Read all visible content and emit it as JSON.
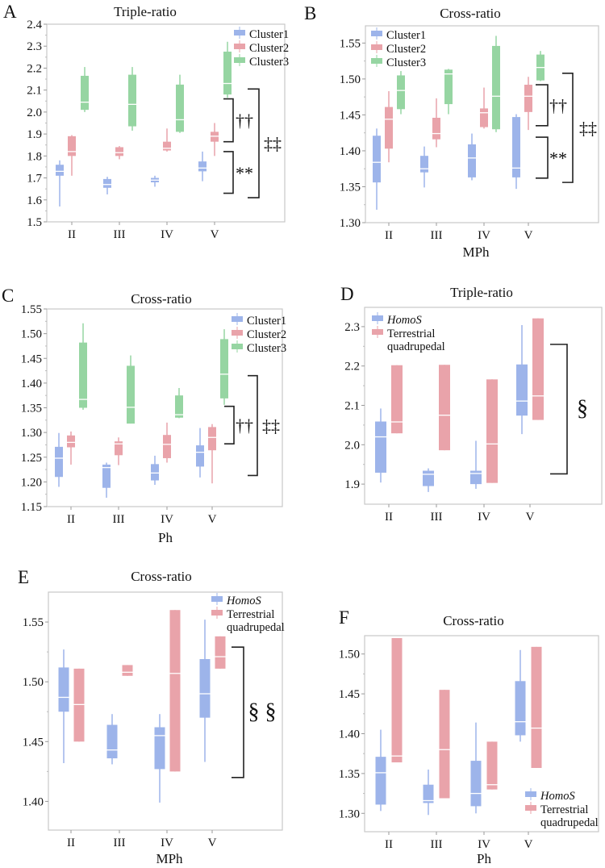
{
  "colors": {
    "cluster1": "#9db4ea",
    "cluster2": "#e9a3aa",
    "cluster3": "#96d5a2",
    "homos": "#9db4ea",
    "terrestrial": "#e9a3aa",
    "frame": "#c8c8c8",
    "median": "#ffffff",
    "bracket": "#222222"
  },
  "chart_data": [
    {
      "panel": "A",
      "type": "box",
      "title": "Triple-ratio",
      "xlabel": "",
      "ylabel": "",
      "ylim": [
        1.5,
        2.4
      ],
      "yticks": [
        "1.5",
        "1.6",
        "1.7",
        "1.8",
        "1.9",
        "2.0",
        "2.1",
        "2.2",
        "2.3",
        "2.4"
      ],
      "categories": [
        "II",
        "III",
        "IV",
        "V"
      ],
      "legend_position": "top-right",
      "series": [
        {
          "name": "Cluster1",
          "color_key": "cluster1",
          "label_lines": [
            "Cluster1"
          ],
          "boxes": [
            [
              1.57,
              1.71,
              1.73,
              1.76,
              1.78
            ],
            [
              1.625,
              1.655,
              1.67,
              1.695,
              1.705
            ],
            [
              1.66,
              1.68,
              1.69,
              1.7,
              1.71
            ],
            [
              1.685,
              1.73,
              1.745,
              1.775,
              1.82
            ]
          ]
        },
        {
          "name": "Cluster2",
          "color_key": "cluster2",
          "label_lines": [
            "Cluster2"
          ],
          "boxes": [
            [
              1.71,
              1.8,
              1.82,
              1.89,
              1.895
            ],
            [
              1.785,
              1.8,
              1.815,
              1.84,
              1.845
            ],
            [
              1.82,
              1.825,
              1.835,
              1.865,
              1.925
            ],
            [
              1.8,
              1.865,
              1.89,
              1.91,
              1.95
            ]
          ]
        },
        {
          "name": "Cluster3",
          "color_key": "cluster3",
          "label_lines": [
            "Cluster3"
          ],
          "boxes": [
            [
              2.0,
              2.01,
              2.045,
              2.165,
              2.205
            ],
            [
              1.915,
              1.935,
              2.035,
              2.17,
              2.205
            ],
            [
              1.905,
              1.91,
              1.965,
              2.125,
              2.17
            ],
            [
              2.065,
              2.08,
              2.13,
              2.275,
              2.32
            ]
          ]
        }
      ],
      "annotations": [
        {
          "label": "††",
          "y_range": [
            1.865,
            2.06
          ]
        },
        {
          "label": "**",
          "y_range": [
            1.63,
            1.82
          ]
        },
        {
          "label": "‡‡",
          "y_range": [
            1.61,
            2.105
          ]
        }
      ]
    },
    {
      "panel": "B",
      "type": "box",
      "title": "Cross-ratio",
      "xlabel": "MPh",
      "ylabel": "",
      "ylim": [
        1.3,
        1.574
      ],
      "yticks": [
        "1.30",
        "1.35",
        "1.40",
        "1.45",
        "1.50",
        "1.55"
      ],
      "categories": [
        "II",
        "III",
        "IV",
        "V"
      ],
      "legend_position": "top-left",
      "series": [
        {
          "name": "Cluster1",
          "color_key": "cluster1",
          "label_lines": [
            "Cluster1"
          ],
          "boxes": [
            [
              1.318,
              1.356,
              1.384,
              1.421,
              1.431
            ],
            [
              1.349,
              1.37,
              1.375,
              1.393,
              1.406
            ],
            [
              1.359,
              1.363,
              1.39,
              1.409,
              1.424
            ],
            [
              1.347,
              1.363,
              1.376,
              1.447,
              1.451
            ]
          ]
        },
        {
          "name": "Cluster2",
          "color_key": "cluster2",
          "label_lines": [
            "Cluster2"
          ],
          "boxes": [
            [
              1.384,
              1.403,
              1.444,
              1.461,
              1.483
            ],
            [
              1.405,
              1.416,
              1.424,
              1.446,
              1.473
            ],
            [
              1.431,
              1.433,
              1.453,
              1.459,
              1.488
            ],
            [
              1.429,
              1.454,
              1.476,
              1.492,
              1.503
            ]
          ]
        },
        {
          "name": "Cluster3",
          "color_key": "cluster3",
          "label_lines": [
            "Cluster3"
          ],
          "boxes": [
            [
              1.451,
              1.458,
              1.484,
              1.505,
              1.511
            ],
            [
              1.451,
              1.465,
              1.507,
              1.513,
              1.514
            ],
            [
              1.426,
              1.43,
              1.476,
              1.546,
              1.56
            ],
            [
              1.497,
              1.498,
              1.516,
              1.534,
              1.539
            ]
          ]
        }
      ],
      "annotations": [
        {
          "label": "††",
          "y_range": [
            1.435,
            1.492
          ]
        },
        {
          "label": "**",
          "y_range": [
            1.362,
            1.419
          ]
        },
        {
          "label": "‡‡",
          "y_range": [
            1.356,
            1.508
          ]
        }
      ]
    },
    {
      "panel": "C",
      "type": "box",
      "title": "Cross-ratio",
      "xlabel": "Ph",
      "ylabel": "",
      "ylim": [
        1.15,
        1.55
      ],
      "yticks": [
        "1.15",
        "1.20",
        "1.25",
        "1.30",
        "1.35",
        "1.40",
        "1.45",
        "1.50",
        "1.55"
      ],
      "categories": [
        "II",
        "III",
        "IV",
        "V"
      ],
      "legend_position": "top-right",
      "series": [
        {
          "name": "Cluster1",
          "color_key": "cluster1",
          "label_lines": [
            "Cluster1"
          ],
          "boxes": [
            [
              1.19,
              1.21,
              1.248,
              1.271,
              1.299
            ],
            [
              1.168,
              1.188,
              1.229,
              1.235,
              1.239
            ],
            [
              1.194,
              1.203,
              1.218,
              1.236,
              1.253
            ],
            [
              1.209,
              1.231,
              1.26,
              1.274,
              1.309
            ]
          ]
        },
        {
          "name": "Cluster2",
          "color_key": "cluster2",
          "label_lines": [
            "Cluster2"
          ],
          "boxes": [
            [
              1.235,
              1.27,
              1.28,
              1.294,
              1.302
            ],
            [
              1.234,
              1.254,
              1.277,
              1.282,
              1.29
            ],
            [
              1.239,
              1.248,
              1.276,
              1.295,
              1.32
            ],
            [
              1.197,
              1.264,
              1.29,
              1.311,
              1.317
            ]
          ]
        },
        {
          "name": "Cluster3",
          "color_key": "cluster3",
          "label_lines": [
            "Cluster3"
          ],
          "boxes": [
            [
              1.346,
              1.35,
              1.367,
              1.482,
              1.521
            ],
            [
              1.318,
              1.318,
              1.351,
              1.435,
              1.456
            ],
            [
              1.329,
              1.33,
              1.336,
              1.375,
              1.39
            ],
            [
              1.356,
              1.369,
              1.418,
              1.489,
              1.509
            ]
          ]
        }
      ],
      "annotations": [
        {
          "label": "††",
          "y_range": [
            1.277,
            1.353
          ]
        },
        {
          "label": "‡‡",
          "y_range": [
            1.213,
            1.415
          ]
        }
      ]
    },
    {
      "panel": "D",
      "type": "box",
      "title": "Triple-ratio",
      "xlabel": "",
      "ylabel": "",
      "ylim": [
        1.849,
        2.349
      ],
      "yticks": [
        "1.9",
        "2.0",
        "2.1",
        "2.2",
        "2.3"
      ],
      "categories": [
        "II",
        "III",
        "IV",
        "V"
      ],
      "legend_position": "top-left",
      "series": [
        {
          "name": "HomoS",
          "italic": true,
          "color_key": "homos",
          "label_lines": [
            "HomoS"
          ],
          "boxes": [
            [
              1.904,
              1.929,
              2.02,
              2.059,
              2.092
            ],
            [
              1.88,
              1.895,
              1.925,
              1.934,
              1.94
            ],
            [
              1.888,
              1.9,
              1.927,
              1.934,
              2.01
            ],
            [
              2.027,
              2.074,
              2.111,
              2.204,
              2.304
            ]
          ]
        },
        {
          "name": "Terrestrial quadrupedal",
          "color_key": "terrestrial",
          "label_lines": [
            "Terrestrial",
            "quadrupedal"
          ],
          "boxes": [
            [
              2.029,
              2.029,
              2.058,
              2.202,
              2.202
            ],
            [
              1.986,
              1.986,
              2.075,
              2.203,
              2.203
            ],
            [
              1.903,
              1.903,
              2.002,
              2.166,
              2.166
            ],
            [
              2.063,
              2.063,
              2.124,
              2.321,
              2.321
            ]
          ]
        }
      ],
      "annotations": [
        {
          "label": "§",
          "y_range": [
            1.926,
            2.255
          ]
        }
      ]
    },
    {
      "panel": "E",
      "type": "box",
      "title": "Cross-ratio",
      "xlabel": "MPh",
      "ylabel": "",
      "ylim": [
        1.376,
        1.575
      ],
      "yticks": [
        "1.40",
        "1.45",
        "1.50",
        "1.55"
      ],
      "categories": [
        "II",
        "III",
        "IV",
        "V"
      ],
      "legend_position": "top-right",
      "series": [
        {
          "name": "HomoS",
          "italic": true,
          "color_key": "homos",
          "label_lines": [
            "HomoS"
          ],
          "boxes": [
            [
              1.432,
              1.475,
              1.487,
              1.512,
              1.527
            ],
            [
              1.431,
              1.436,
              1.443,
              1.464,
              1.473
            ],
            [
              1.399,
              1.427,
              1.455,
              1.462,
              1.473
            ],
            [
              1.433,
              1.47,
              1.49,
              1.519,
              1.552
            ]
          ]
        },
        {
          "name": "Terrestrial quadrupedal",
          "color_key": "terrestrial",
          "label_lines": [
            "Terrestrial",
            "quadrupedal"
          ],
          "boxes": [
            [
              1.45,
              1.45,
              1.481,
              1.511,
              1.511
            ],
            [
              1.505,
              1.505,
              1.508,
              1.514,
              1.514
            ],
            [
              1.425,
              1.425,
              1.507,
              1.56,
              1.56
            ],
            [
              1.511,
              1.511,
              1.521,
              1.538,
              1.538
            ]
          ]
        }
      ],
      "annotations": [
        {
          "label": "§ §",
          "y_range": [
            1.42,
            1.529
          ]
        }
      ]
    },
    {
      "panel": "F",
      "type": "box",
      "title": "Cross-ratio",
      "xlabel": "Ph",
      "ylabel": "",
      "ylim": [
        1.277,
        1.523
      ],
      "yticks": [
        "1.30",
        "1.35",
        "1.40",
        "1.45",
        "1.50"
      ],
      "categories": [
        "II",
        "III",
        "IV",
        "V"
      ],
      "legend_position": "bottom-right",
      "series": [
        {
          "name": "HomoS",
          "italic": true,
          "color_key": "homos",
          "label_lines": [
            "HomoS"
          ],
          "boxes": [
            [
              1.303,
              1.311,
              1.351,
              1.371,
              1.405
            ],
            [
              1.298,
              1.313,
              1.316,
              1.336,
              1.355
            ],
            [
              1.3,
              1.309,
              1.325,
              1.366,
              1.414
            ],
            [
              1.39,
              1.398,
              1.415,
              1.466,
              1.505
            ]
          ]
        },
        {
          "name": "Terrestrial quadrupedal",
          "color_key": "terrestrial",
          "label_lines": [
            "Terrestrial",
            "quadrupedal"
          ],
          "boxes": [
            [
              1.364,
              1.364,
              1.372,
              1.52,
              1.52
            ],
            [
              1.319,
              1.319,
              1.38,
              1.455,
              1.455
            ],
            [
              1.33,
              1.33,
              1.336,
              1.39,
              1.39
            ],
            [
              1.357,
              1.357,
              1.407,
              1.509,
              1.509
            ]
          ]
        }
      ],
      "annotations": []
    }
  ]
}
